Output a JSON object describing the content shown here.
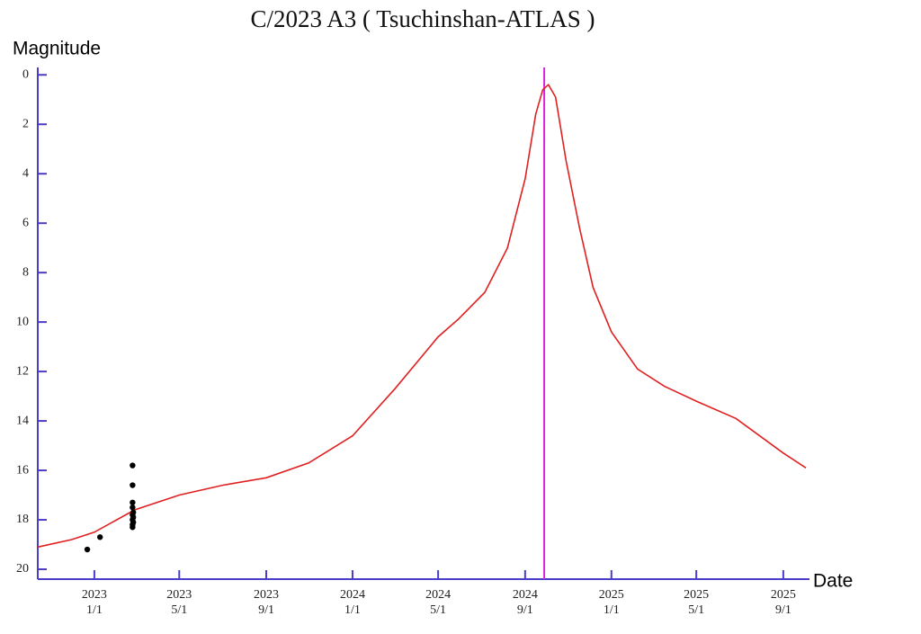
{
  "chart_data": {
    "type": "comet-lightcurve",
    "title": "C/2023 A3 ( Tsuchinshan-ATLAS )",
    "y_label": "Magnitude",
    "x_label": "Date",
    "xlim": [
      "2022-10-13",
      "2025-10-08"
    ],
    "ylim": [
      -0.3,
      20.4
    ],
    "y_inverted": true,
    "axis_color": "#4a3ec8",
    "yticks": [
      0,
      2,
      4,
      6,
      8,
      10,
      12,
      14,
      16,
      18,
      20
    ],
    "xticks": [
      {
        "value": "2023-01-01",
        "label": "2023 1/1"
      },
      {
        "value": "2023-05-01",
        "label": "2023 5/1"
      },
      {
        "value": "2023-09-01",
        "label": "2023 9/1"
      },
      {
        "value": "2024-01-01",
        "label": "2024 1/1"
      },
      {
        "value": "2024-05-01",
        "label": "2024 5/1"
      },
      {
        "value": "2024-09-01",
        "label": "2024 9/1"
      },
      {
        "value": "2025-01-01",
        "label": "2025 1/1"
      },
      {
        "value": "2025-05-01",
        "label": "2025 5/1"
      },
      {
        "value": "2025-09-01",
        "label": "2025 9/1"
      }
    ],
    "marker_line": {
      "x": "2024-09-28",
      "color": "#e020e0"
    },
    "series": [
      {
        "kind": "line",
        "color": "#e02020",
        "x": [
          "2022-10-13",
          "2022-11-30",
          "2023-01-01",
          "2023-02-27",
          "2023-05-01",
          "2023-07-02",
          "2023-09-01",
          "2023-10-31",
          "2024-01-01",
          "2024-03-01",
          "2024-05-01",
          "2024-05-29",
          "2024-07-06",
          "2024-08-07",
          "2024-09-01",
          "2024-09-16",
          "2024-09-26",
          "2024-10-04",
          "2024-10-14",
          "2024-10-29",
          "2024-11-17",
          "2024-12-06",
          "2025-01-01",
          "2025-02-07",
          "2025-03-17",
          "2025-05-01",
          "2025-06-26",
          "2025-09-01",
          "2025-10-03"
        ],
        "values": [
          19.1,
          18.8,
          18.5,
          17.6,
          17.0,
          16.6,
          16.3,
          15.7,
          14.6,
          12.7,
          10.6,
          9.9,
          8.8,
          7.0,
          4.2,
          1.6,
          0.6,
          0.4,
          0.9,
          3.5,
          6.2,
          8.6,
          10.4,
          11.9,
          12.6,
          13.2,
          13.9,
          15.3,
          15.9
        ]
      },
      {
        "kind": "points",
        "color": "#000000",
        "x": [
          "2022-12-22",
          "2023-01-09",
          "2023-02-24",
          "2023-02-24",
          "2023-02-24",
          "2023-02-24",
          "2023-02-25",
          "2023-02-24",
          "2023-02-25",
          "2023-02-24",
          "2023-02-25",
          "2023-02-24",
          "2023-02-24"
        ],
        "values": [
          19.2,
          18.7,
          15.8,
          16.6,
          17.3,
          17.5,
          17.7,
          17.8,
          17.9,
          18.0,
          18.1,
          18.2,
          18.3
        ]
      }
    ]
  }
}
